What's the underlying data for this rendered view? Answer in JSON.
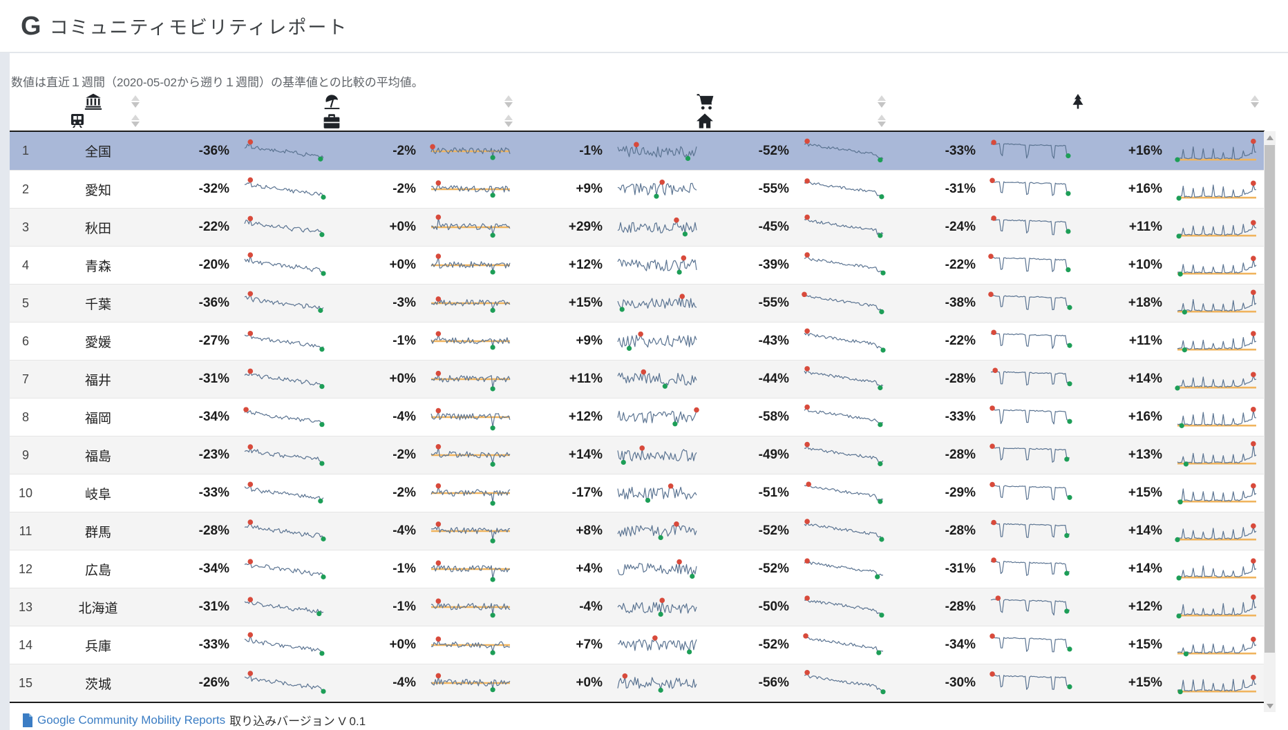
{
  "app": {
    "logo": "G",
    "title": "コミュニティモビリティレポート",
    "subtitle": "数値は直近１週間（2020-05-02から遡り１週間）の基準値との比較の平均値。"
  },
  "table": {
    "region_column": {
      "icon": "landmark-icon",
      "sortable": true
    },
    "categories": [
      {
        "id": "retail-recreation",
        "icon": "beach-umbrella-icon",
        "trend": "decline",
        "sortable": true
      },
      {
        "id": "grocery-pharmacy",
        "icon": "shopping-cart-icon",
        "trend": "flat-baseline",
        "sortable": true
      },
      {
        "id": "parks",
        "icon": "tree-icon",
        "trend": "noisy",
        "sortable": true
      },
      {
        "id": "transit-stations",
        "icon": "train-icon",
        "trend": "decline-strong",
        "sortable": true
      },
      {
        "id": "workplaces",
        "icon": "briefcase-icon",
        "trend": "flat-dips",
        "sortable": true
      },
      {
        "id": "residential",
        "icon": "home-icon",
        "trend": "rise-spikes",
        "sortable": true
      }
    ],
    "rows": [
      {
        "rank": "1",
        "region": "全国",
        "selected": true,
        "values": [
          "-36%",
          "-2%",
          "-1%",
          "-52%",
          "-33%",
          "+16%"
        ]
      },
      {
        "rank": "2",
        "region": "愛知",
        "selected": false,
        "values": [
          "-32%",
          "-2%",
          "+9%",
          "-55%",
          "-31%",
          "+16%"
        ]
      },
      {
        "rank": "3",
        "region": "秋田",
        "selected": false,
        "values": [
          "-22%",
          "+0%",
          "+29%",
          "-45%",
          "-24%",
          "+11%"
        ]
      },
      {
        "rank": "4",
        "region": "青森",
        "selected": false,
        "values": [
          "-20%",
          "+0%",
          "+12%",
          "-39%",
          "-22%",
          "+10%"
        ]
      },
      {
        "rank": "5",
        "region": "千葉",
        "selected": false,
        "values": [
          "-36%",
          "-3%",
          "+15%",
          "-55%",
          "-38%",
          "+18%"
        ]
      },
      {
        "rank": "6",
        "region": "愛媛",
        "selected": false,
        "values": [
          "-27%",
          "-1%",
          "+9%",
          "-43%",
          "-22%",
          "+11%"
        ]
      },
      {
        "rank": "7",
        "region": "福井",
        "selected": false,
        "values": [
          "-31%",
          "+0%",
          "+11%",
          "-44%",
          "-28%",
          "+14%"
        ]
      },
      {
        "rank": "8",
        "region": "福岡",
        "selected": false,
        "values": [
          "-34%",
          "-4%",
          "+12%",
          "-58%",
          "-33%",
          "+16%"
        ]
      },
      {
        "rank": "9",
        "region": "福島",
        "selected": false,
        "values": [
          "-23%",
          "-2%",
          "+14%",
          "-49%",
          "-28%",
          "+13%"
        ]
      },
      {
        "rank": "10",
        "region": "岐阜",
        "selected": false,
        "values": [
          "-33%",
          "-2%",
          "-17%",
          "-51%",
          "-29%",
          "+15%"
        ]
      },
      {
        "rank": "11",
        "region": "群馬",
        "selected": false,
        "values": [
          "-28%",
          "-4%",
          "+8%",
          "-52%",
          "-28%",
          "+14%"
        ]
      },
      {
        "rank": "12",
        "region": "広島",
        "selected": false,
        "values": [
          "-34%",
          "-1%",
          "+4%",
          "-52%",
          "-31%",
          "+14%"
        ]
      },
      {
        "rank": "13",
        "region": "北海道",
        "selected": false,
        "values": [
          "-31%",
          "-1%",
          "-4%",
          "-50%",
          "-28%",
          "+12%"
        ]
      },
      {
        "rank": "14",
        "region": "兵庫",
        "selected": false,
        "values": [
          "-33%",
          "+0%",
          "+7%",
          "-52%",
          "-34%",
          "+15%"
        ]
      },
      {
        "rank": "15",
        "region": "茨城",
        "selected": false,
        "values": [
          "-26%",
          "-4%",
          "+0%",
          "-56%",
          "-30%",
          "+15%"
        ]
      }
    ]
  },
  "footer": {
    "icon": "file-icon",
    "link_label": "Google Community Mobility Reports",
    "suffix": "取り込みバージョン V 0.1"
  },
  "colors": {
    "selected_row": "#a9b8d8",
    "stripe_row": "#f4f4f4",
    "spark_line": "#5a7391",
    "dot_max": "#d84a3b",
    "dot_min": "#1d9e57",
    "baseline": "#f0b45e",
    "icon_dark": "#1f2328",
    "link_blue": "#3b7dc4"
  }
}
